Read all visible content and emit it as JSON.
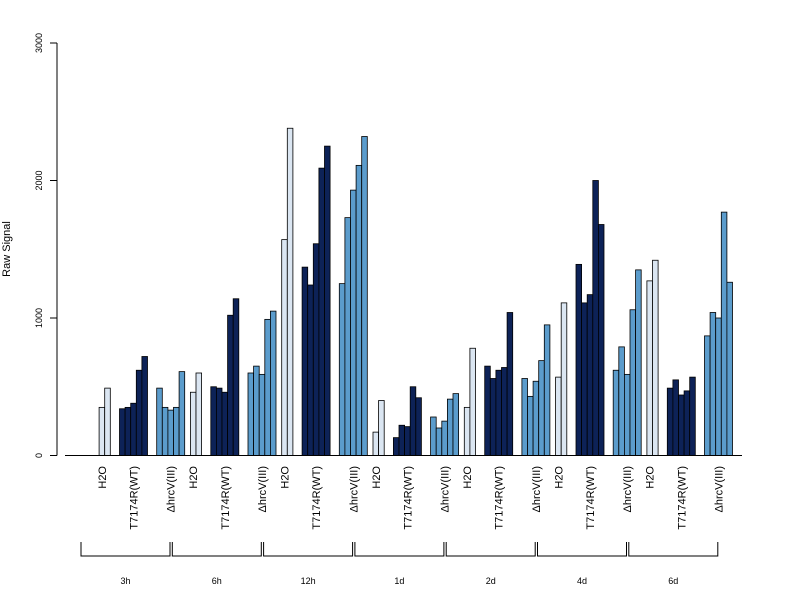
{
  "chart_data": {
    "type": "bar",
    "ylabel": "Raw Signal",
    "ylim": [
      0,
      3000
    ],
    "yticks": [
      0,
      1000,
      2000,
      3000
    ],
    "ytick_labels": [
      "0",
      "1000",
      "2000",
      "3000"
    ],
    "series": [
      {
        "name": "H2O",
        "color": "#dbe6f2"
      },
      {
        "name": "T7174R(WT)",
        "color": "#0d2257"
      },
      {
        "name": "ΔhrcV(III)",
        "color": "#5b9ccc"
      }
    ],
    "groups": [
      {
        "label": "3h",
        "H2O": [
          0,
          350,
          490
        ],
        "WT": [
          340,
          350,
          380,
          620,
          720
        ],
        "MUT": [
          490,
          350,
          330,
          350,
          610
        ]
      },
      {
        "label": "6h",
        "H2O": [
          0,
          460,
          600
        ],
        "WT": [
          500,
          490,
          460,
          1020,
          1140
        ],
        "MUT": [
          600,
          650,
          590,
          990,
          1050
        ]
      },
      {
        "label": "12h",
        "H2O": [
          0,
          1570,
          2380
        ],
        "WT": [
          1370,
          1240,
          1540,
          2090,
          2250
        ],
        "MUT": [
          1250,
          1730,
          1930,
          2110,
          2320
        ]
      },
      {
        "label": "1d",
        "H2O": [
          0,
          170,
          400
        ],
        "WT": [
          130,
          220,
          210,
          500,
          420
        ],
        "MUT": [
          280,
          200,
          250,
          410,
          450
        ]
      },
      {
        "label": "2d",
        "H2O": [
          0,
          350,
          780
        ],
        "WT": [
          650,
          560,
          620,
          640,
          1040
        ],
        "MUT": [
          560,
          430,
          540,
          690,
          950
        ]
      },
      {
        "label": "4d",
        "H2O": [
          0,
          570,
          1110
        ],
        "WT": [
          1390,
          1110,
          1170,
          2000,
          1680
        ],
        "MUT": [
          620,
          790,
          590,
          1060,
          1350
        ]
      },
      {
        "label": "6d",
        "H2O": [
          0,
          1270,
          1420
        ],
        "WT": [
          490,
          550,
          440,
          470,
          570
        ],
        "MUT": [
          870,
          1040,
          1000,
          1770,
          1260
        ]
      }
    ],
    "x_group_labels": [
      "H2O",
      "T7174R(WT)",
      "ΔhrcV(III)"
    ]
  }
}
